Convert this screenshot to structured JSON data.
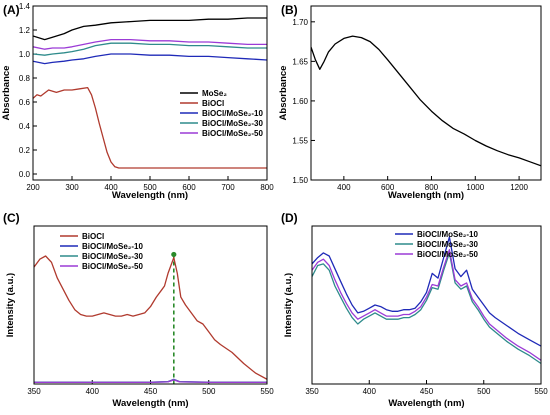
{
  "chart_data": [
    {
      "panel": "(A)",
      "type": "line",
      "xlabel": "Wavelength (nm)",
      "ylabel": "Absorbance",
      "xlim": [
        200,
        800
      ],
      "ylim": [
        -0.05,
        1.4
      ],
      "xticks": [
        "200",
        "300",
        "400",
        "500",
        "600",
        "700",
        "800"
      ],
      "yticks": [
        "0.0",
        "0.2",
        "0.4",
        "0.6",
        "0.8",
        "1.0",
        "1.2",
        "1.4"
      ],
      "legend_position": "center-right",
      "series": [
        {
          "name": "MoSe₂",
          "color": "#000000",
          "x": [
            200,
            230,
            250,
            280,
            300,
            330,
            360,
            400,
            450,
            500,
            550,
            600,
            650,
            700,
            750,
            800
          ],
          "y": [
            1.15,
            1.12,
            1.14,
            1.17,
            1.2,
            1.23,
            1.24,
            1.26,
            1.27,
            1.28,
            1.28,
            1.28,
            1.29,
            1.29,
            1.3,
            1.3
          ]
        },
        {
          "name": "BiOCl",
          "color": "#b03a2e",
          "x": [
            200,
            210,
            220,
            240,
            260,
            280,
            300,
            320,
            340,
            350,
            360,
            370,
            380,
            390,
            400,
            410,
            420,
            440,
            500,
            600,
            700,
            800
          ],
          "y": [
            0.63,
            0.66,
            0.65,
            0.7,
            0.68,
            0.7,
            0.7,
            0.71,
            0.72,
            0.66,
            0.55,
            0.42,
            0.3,
            0.18,
            0.1,
            0.06,
            0.05,
            0.05,
            0.05,
            0.05,
            0.05,
            0.05
          ]
        },
        {
          "name": "BiOCl/MoSe₂-10",
          "color": "#1f2ab8",
          "x": [
            200,
            230,
            250,
            280,
            300,
            330,
            360,
            400,
            450,
            500,
            550,
            600,
            650,
            700,
            750,
            800
          ],
          "y": [
            0.94,
            0.92,
            0.93,
            0.94,
            0.95,
            0.96,
            0.98,
            1.0,
            1.0,
            0.99,
            0.99,
            0.98,
            0.98,
            0.97,
            0.96,
            0.95
          ]
        },
        {
          "name": "BiOCl/MoSe₂-30",
          "color": "#2e8b8b",
          "x": [
            200,
            230,
            250,
            280,
            300,
            330,
            360,
            400,
            450,
            500,
            550,
            600,
            650,
            700,
            750,
            800
          ],
          "y": [
            1.0,
            0.99,
            1.0,
            1.01,
            1.02,
            1.04,
            1.07,
            1.09,
            1.09,
            1.08,
            1.08,
            1.07,
            1.07,
            1.06,
            1.05,
            1.05
          ]
        },
        {
          "name": "BiOCl/MoSe₂-50",
          "color": "#9b3bd6",
          "x": [
            200,
            230,
            250,
            280,
            300,
            330,
            360,
            400,
            450,
            500,
            550,
            600,
            650,
            700,
            750,
            800
          ],
          "y": [
            1.06,
            1.04,
            1.05,
            1.05,
            1.06,
            1.08,
            1.1,
            1.12,
            1.12,
            1.11,
            1.11,
            1.1,
            1.1,
            1.09,
            1.08,
            1.08
          ]
        }
      ]
    },
    {
      "panel": "(B)",
      "type": "line",
      "xlabel": "Wavelength (nm)",
      "ylabel": "Absorbance",
      "xlim": [
        250,
        1300
      ],
      "ylim": [
        1.5,
        1.72
      ],
      "xticks": [
        "400",
        "600",
        "800",
        "1000",
        "1200"
      ],
      "yticks": [
        "1.50",
        "1.55",
        "1.60",
        "1.65",
        "1.70"
      ],
      "series": [
        {
          "name": "",
          "color": "#000000",
          "x": [
            250,
            270,
            290,
            310,
            330,
            360,
            400,
            440,
            480,
            520,
            560,
            600,
            650,
            700,
            750,
            800,
            850,
            900,
            950,
            1000,
            1050,
            1100,
            1150,
            1200,
            1250,
            1300
          ],
          "y": [
            1.668,
            1.652,
            1.64,
            1.65,
            1.662,
            1.672,
            1.679,
            1.682,
            1.68,
            1.675,
            1.665,
            1.652,
            1.635,
            1.618,
            1.601,
            1.587,
            1.575,
            1.565,
            1.558,
            1.55,
            1.543,
            1.537,
            1.532,
            1.528,
            1.523,
            1.518
          ]
        }
      ]
    },
    {
      "panel": "(C)",
      "type": "line",
      "xlabel": "Wavelength (nm)",
      "ylabel": "Intensity (a.u.)",
      "xlim": [
        350,
        550
      ],
      "ylim": [
        0,
        1.0
      ],
      "xticks": [
        "350",
        "400",
        "450",
        "500",
        "550"
      ],
      "legend_position": "top-left",
      "series": [
        {
          "name": "BiOCl",
          "color": "#b03a2e",
          "x": [
            350,
            355,
            360,
            365,
            370,
            375,
            380,
            385,
            390,
            395,
            400,
            405,
            410,
            415,
            420,
            425,
            430,
            435,
            440,
            445,
            450,
            455,
            460,
            462,
            465,
            468,
            470,
            473,
            476,
            480,
            485,
            490,
            495,
            500,
            505,
            510,
            520,
            530,
            540,
            550
          ],
          "y": [
            0.74,
            0.79,
            0.81,
            0.77,
            0.67,
            0.6,
            0.53,
            0.47,
            0.44,
            0.43,
            0.43,
            0.44,
            0.45,
            0.44,
            0.43,
            0.43,
            0.44,
            0.43,
            0.44,
            0.45,
            0.49,
            0.55,
            0.6,
            0.62,
            0.7,
            0.76,
            0.8,
            0.7,
            0.55,
            0.5,
            0.45,
            0.4,
            0.38,
            0.33,
            0.28,
            0.25,
            0.2,
            0.13,
            0.07,
            0.03
          ]
        },
        {
          "name": "BiOCl/MoSe₂-10",
          "color": "#1f2ab8",
          "x": [
            350,
            400,
            450,
            465,
            470,
            475,
            500,
            550
          ],
          "y": [
            0.012,
            0.012,
            0.012,
            0.015,
            0.03,
            0.015,
            0.012,
            0.012
          ]
        },
        {
          "name": "BiOCl/MoSe₂-30",
          "color": "#2e8b8b",
          "x": [
            350,
            400,
            450,
            465,
            470,
            475,
            500,
            550
          ],
          "y": [
            0.011,
            0.011,
            0.011,
            0.014,
            0.028,
            0.014,
            0.011,
            0.011
          ]
        },
        {
          "name": "BiOCl/MoSe₂-50",
          "color": "#9b3bd6",
          "x": [
            350,
            400,
            450,
            465,
            470,
            475,
            500,
            550
          ],
          "y": [
            0.01,
            0.01,
            0.01,
            0.013,
            0.026,
            0.013,
            0.01,
            0.01
          ]
        }
      ],
      "annotations": [
        {
          "type": "vertical-dashed-line",
          "x": 470,
          "color": "#2a8a2a"
        }
      ]
    },
    {
      "panel": "(D)",
      "type": "line",
      "xlabel": "Wavelength (nm)",
      "ylabel": "Intensity (a.u.)",
      "xlim": [
        350,
        550
      ],
      "ylim": [
        0,
        1.0
      ],
      "xticks": [
        "350",
        "400",
        "450",
        "500",
        "550"
      ],
      "legend_position": "top-right",
      "series": [
        {
          "name": "BiOCl/MoSe₂-10",
          "color": "#1f2ab8",
          "x": [
            350,
            355,
            360,
            365,
            370,
            375,
            380,
            385,
            390,
            395,
            400,
            405,
            410,
            415,
            420,
            425,
            430,
            435,
            440,
            445,
            450,
            455,
            460,
            465,
            470,
            475,
            480,
            485,
            490,
            495,
            500,
            505,
            510,
            520,
            530,
            540,
            550
          ],
          "y": [
            0.76,
            0.8,
            0.83,
            0.81,
            0.73,
            0.65,
            0.57,
            0.5,
            0.45,
            0.46,
            0.48,
            0.5,
            0.49,
            0.47,
            0.46,
            0.46,
            0.47,
            0.47,
            0.48,
            0.52,
            0.58,
            0.7,
            0.67,
            0.8,
            0.93,
            0.73,
            0.68,
            0.72,
            0.6,
            0.55,
            0.5,
            0.45,
            0.42,
            0.37,
            0.32,
            0.28,
            0.24
          ]
        },
        {
          "name": "BiOCl/MoSe₂-30",
          "color": "#2e8b8b",
          "x": [
            350,
            355,
            360,
            365,
            370,
            375,
            380,
            385,
            390,
            395,
            400,
            405,
            410,
            415,
            420,
            425,
            430,
            435,
            440,
            445,
            450,
            455,
            460,
            465,
            470,
            475,
            480,
            485,
            490,
            495,
            500,
            505,
            510,
            520,
            530,
            540,
            550
          ],
          "y": [
            0.68,
            0.75,
            0.76,
            0.72,
            0.62,
            0.55,
            0.48,
            0.42,
            0.38,
            0.41,
            0.43,
            0.45,
            0.43,
            0.41,
            0.41,
            0.41,
            0.42,
            0.42,
            0.44,
            0.47,
            0.53,
            0.61,
            0.6,
            0.72,
            0.83,
            0.64,
            0.6,
            0.62,
            0.52,
            0.47,
            0.41,
            0.36,
            0.33,
            0.27,
            0.22,
            0.18,
            0.13
          ]
        },
        {
          "name": "BiOCl/MoSe₂-50",
          "color": "#9b3bd6",
          "x": [
            350,
            355,
            360,
            365,
            370,
            375,
            380,
            385,
            390,
            395,
            400,
            405,
            410,
            415,
            420,
            425,
            430,
            435,
            440,
            445,
            450,
            455,
            460,
            465,
            470,
            475,
            480,
            485,
            490,
            495,
            500,
            505,
            510,
            520,
            530,
            540,
            550
          ],
          "y": [
            0.72,
            0.77,
            0.79,
            0.75,
            0.66,
            0.58,
            0.51,
            0.45,
            0.41,
            0.43,
            0.45,
            0.47,
            0.45,
            0.43,
            0.43,
            0.43,
            0.44,
            0.44,
            0.46,
            0.49,
            0.55,
            0.63,
            0.62,
            0.74,
            0.85,
            0.66,
            0.62,
            0.64,
            0.54,
            0.49,
            0.43,
            0.38,
            0.35,
            0.29,
            0.24,
            0.2,
            0.15
          ]
        }
      ]
    }
  ]
}
